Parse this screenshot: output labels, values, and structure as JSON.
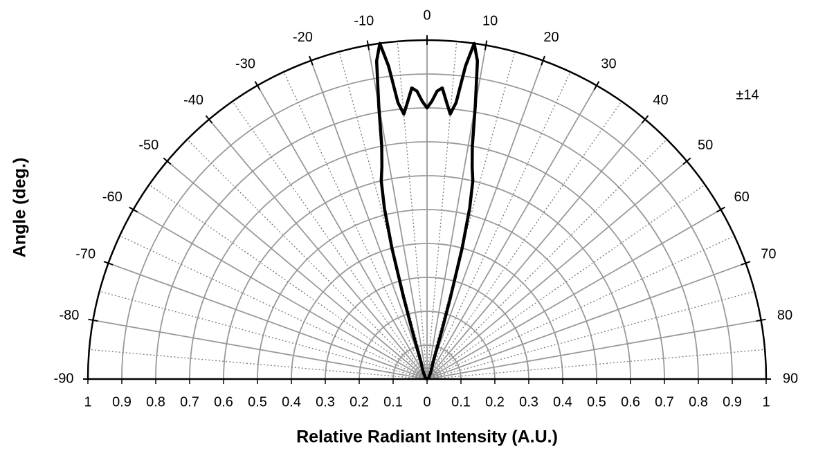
{
  "chart_data": {
    "type": "polar",
    "xlabel": "Relative Radiant Intensity (A.U.)",
    "ylabel": "Angle (deg.)",
    "annotation": "±14",
    "angle_ticks": [
      -90,
      -80,
      -70,
      -60,
      -50,
      -40,
      -30,
      -20,
      -10,
      0,
      10,
      20,
      30,
      40,
      50,
      60,
      70,
      80,
      90
    ],
    "rlim": [
      0,
      1
    ],
    "rticks": [
      0,
      0.1,
      0.2,
      0.3,
      0.4,
      0.5,
      0.6,
      0.7,
      0.8,
      0.9,
      1
    ],
    "grid": true,
    "series": [
      {
        "color": "#000000",
        "x": [
          -90,
          -60,
          -40,
          -30,
          -25,
          -20,
          -18,
          -17,
          -16,
          -15,
          -14,
          -13,
          -12,
          -11,
          -10,
          -9,
          -8,
          -7,
          -6,
          -5,
          -4,
          -3,
          -2,
          -1,
          0,
          1,
          2,
          3,
          4,
          5,
          6,
          7,
          8,
          9,
          10,
          11,
          12,
          13,
          14,
          15,
          16,
          17,
          18,
          20,
          25,
          30,
          40,
          60,
          90
        ],
        "values": [
          0,
          0.005,
          0.01,
          0.02,
          0.03,
          0.05,
          0.09,
          0.15,
          0.25,
          0.4,
          0.52,
          0.6,
          0.64,
          0.7,
          0.82,
          0.95,
          1.0,
          0.93,
          0.82,
          0.785,
          0.82,
          0.86,
          0.85,
          0.82,
          0.8,
          0.82,
          0.85,
          0.86,
          0.82,
          0.785,
          0.82,
          0.93,
          1.0,
          0.95,
          0.82,
          0.7,
          0.64,
          0.6,
          0.52,
          0.4,
          0.25,
          0.15,
          0.09,
          0.05,
          0.03,
          0.02,
          0.01,
          0.005,
          0
        ]
      }
    ]
  }
}
